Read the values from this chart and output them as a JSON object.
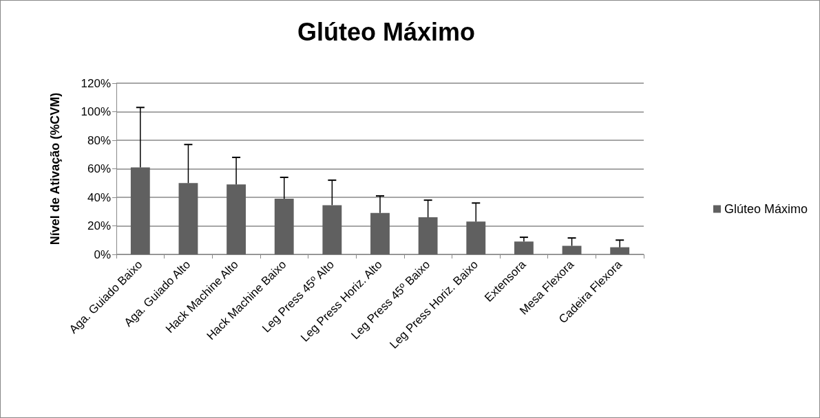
{
  "chart_data": {
    "type": "bar",
    "title": "Glúteo Máximo",
    "ylabel": "Nível de Ativação (%CVM)",
    "categories": [
      "Aga. Guiado Baixo",
      "Aga. Guiado Alto",
      "Hack Machine Alto",
      "Hack Machine Baixo",
      "Leg Press 45º Alto",
      "Leg Press Horiz. Alto",
      "Leg Press 45º Baixo",
      "Leg Press Horiz. Baixo",
      "Extensora",
      "Mesa Flexora",
      "Cadeira Flexora"
    ],
    "series": [
      {
        "name": "Glúteo Máximo",
        "color": "#606060",
        "values": [
          61,
          50,
          49,
          39,
          34.5,
          29,
          26,
          23,
          9,
          6,
          5
        ],
        "errors": [
          [
            61,
            103
          ],
          [
            50,
            77
          ],
          [
            49,
            68
          ],
          [
            39,
            54
          ],
          [
            34.5,
            52
          ],
          [
            29,
            41
          ],
          [
            26,
            38
          ],
          [
            23,
            36
          ],
          [
            9,
            12
          ],
          [
            6,
            11.5
          ],
          [
            5,
            10
          ]
        ]
      }
    ],
    "ylim": [
      0,
      120
    ],
    "yticks": [
      {
        "value": 0,
        "label": "0%"
      },
      {
        "value": 20,
        "label": "20%"
      },
      {
        "value": 40,
        "label": "40%"
      },
      {
        "value": 60,
        "label": "60%"
      },
      {
        "value": 80,
        "label": "80%"
      },
      {
        "value": 100,
        "label": "100%"
      },
      {
        "value": 120,
        "label": "120%"
      }
    ],
    "grid": "y",
    "legend": "right"
  }
}
